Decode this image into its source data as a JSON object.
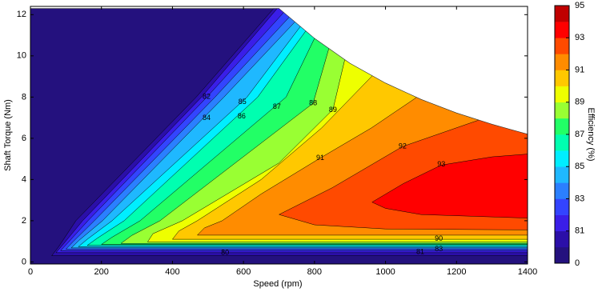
{
  "chart_data": {
    "type": "contour",
    "xlabel": "Speed  (rpm)",
    "ylabel": "Shaft Torque  (Nm)",
    "xlim": [
      0,
      1400
    ],
    "ylim": [
      -0.1,
      12.4
    ],
    "xticks": [
      0,
      200,
      400,
      600,
      800,
      1000,
      1200,
      1400
    ],
    "yticks": [
      0,
      2,
      4,
      6,
      8,
      10,
      12
    ],
    "torque_limit": {
      "x": [
        0,
        700,
        800,
        900,
        1000,
        1100,
        1200,
        1300,
        1400
      ],
      "y": [
        12.3,
        12.3,
        10.85,
        9.64,
        8.68,
        7.89,
        7.23,
        6.68,
        6.2
      ]
    },
    "colorbar": {
      "label": "Efficiency (%)",
      "levels": [
        0,
        80,
        81,
        82,
        83,
        84,
        85,
        86,
        87,
        88,
        89,
        90,
        91,
        92,
        93,
        94,
        95
      ],
      "colors": [
        "#24117e",
        "#2b0fa8",
        "#3a1ee8",
        "#3344ff",
        "#2b7fff",
        "#1fb8ff",
        "#00eeff",
        "#00ffb0",
        "#22ff66",
        "#99ff33",
        "#eeff00",
        "#ffc800",
        "#ff8c00",
        "#ff4a00",
        "#ff0000",
        "#c00000"
      ],
      "ticks": [
        0,
        81,
        83,
        85,
        87,
        89,
        91,
        93,
        95
      ]
    },
    "contours": [
      {
        "level": 80,
        "points": [
          [
            60,
            0.3
          ],
          [
            80,
            0.75
          ],
          [
            128,
            2
          ],
          [
            467,
            8
          ],
          [
            690,
            12.4
          ],
          [
            700,
            14
          ],
          [
            1450,
            14
          ],
          [
            1450,
            0.3
          ]
        ]
      },
      {
        "level": 81,
        "points": [
          [
            72,
            0.45
          ],
          [
            92,
            0.85
          ],
          [
            147,
            2
          ],
          [
            482,
            8
          ],
          [
            700,
            12.4
          ],
          [
            720,
            14
          ],
          [
            1450,
            14
          ],
          [
            1450,
            0.45
          ]
        ]
      },
      {
        "level": 82,
        "points": [
          [
            85,
            0.55
          ],
          [
            105,
            0.92
          ],
          [
            162,
            2
          ],
          [
            497,
            8
          ],
          [
            715,
            12.14
          ],
          [
            740,
            14
          ],
          [
            1450,
            14
          ],
          [
            1450,
            0.55
          ]
        ]
      },
      {
        "level": 83,
        "points": [
          [
            100,
            0.62
          ],
          [
            120,
            0.98
          ],
          [
            180,
            2
          ],
          [
            520,
            8
          ],
          [
            730,
            11.9
          ],
          [
            760,
            14
          ],
          [
            1450,
            14
          ],
          [
            1450,
            0.62
          ]
        ]
      },
      {
        "level": 84,
        "points": [
          [
            115,
            0.68
          ],
          [
            137,
            1.05
          ],
          [
            203,
            2
          ],
          [
            545,
            8
          ],
          [
            745,
            11.65
          ],
          [
            780,
            14
          ],
          [
            1450,
            14
          ],
          [
            1450,
            0.68
          ]
        ]
      },
      {
        "level": 85,
        "points": [
          [
            135,
            0.74
          ],
          [
            160,
            1.1
          ],
          [
            230,
            2
          ],
          [
            610,
            8
          ],
          [
            760,
            11.42
          ],
          [
            800,
            14
          ],
          [
            1450,
            14
          ],
          [
            1450,
            0.74
          ]
        ]
      },
      {
        "level": 86,
        "points": [
          [
            160,
            0.8
          ],
          [
            188,
            1.15
          ],
          [
            264,
            2
          ],
          [
            640,
            8
          ],
          [
            775,
            11.2
          ],
          [
            820,
            14
          ],
          [
            1450,
            14
          ],
          [
            1450,
            0.8
          ]
        ]
      },
      {
        "level": 87,
        "points": [
          [
            200,
            0.85
          ],
          [
            230,
            1.2
          ],
          [
            309,
            2
          ],
          [
            720,
            8
          ],
          [
            800,
            10.85
          ],
          [
            850,
            14
          ],
          [
            1450,
            14
          ],
          [
            1450,
            0.85
          ]
        ]
      },
      {
        "level": 88,
        "points": [
          [
            255,
            0.9
          ],
          [
            285,
            1.28
          ],
          [
            365,
            2
          ],
          [
            796,
            7.7
          ],
          [
            840,
            10.33
          ],
          [
            880,
            14
          ],
          [
            1450,
            14
          ],
          [
            1450,
            0.9
          ]
        ]
      },
      {
        "level": 89,
        "points": [
          [
            330,
            0.97
          ],
          [
            345,
            1.37
          ],
          [
            428,
            2
          ],
          [
            700,
            4.8
          ],
          [
            852,
            7.4
          ],
          [
            885,
            9.8
          ],
          [
            925,
            14
          ],
          [
            1450,
            14
          ],
          [
            1450,
            0.97
          ]
        ]
      },
      {
        "level": 90,
        "points": [
          [
            400,
            1.1
          ],
          [
            418,
            1.5
          ],
          [
            470,
            2
          ],
          [
            650,
            4
          ],
          [
            820,
            6.5
          ],
          [
            962,
            9.02
          ],
          [
            1000,
            14
          ],
          [
            1450,
            14
          ],
          [
            1450,
            1.1
          ]
        ]
      },
      {
        "level": 91,
        "points": [
          [
            470,
            1.3
          ],
          [
            490,
            1.65
          ],
          [
            540,
            2
          ],
          [
            650,
            3.3
          ],
          [
            816,
            5.04
          ],
          [
            960,
            6.5
          ],
          [
            1087,
            7.98
          ],
          [
            1120,
            14
          ],
          [
            1450,
            14
          ],
          [
            1450,
            1.3
          ]
        ]
      },
      {
        "level": 92,
        "points": [
          [
            700,
            2.3
          ],
          [
            850,
            3.6
          ],
          [
            1048,
            5.6
          ],
          [
            1262,
            6.88
          ],
          [
            1300,
            14
          ],
          [
            1450,
            14
          ],
          [
            1450,
            1.55
          ],
          [
            1000,
            1.6
          ],
          [
            800,
            1.8
          ]
        ]
      },
      {
        "level": 93,
        "points": [
          [
            962,
            2.9
          ],
          [
            1050,
            3.8
          ],
          [
            1157,
            4.7
          ],
          [
            1300,
            5.1
          ],
          [
            1450,
            5.3
          ],
          [
            1450,
            2.1
          ],
          [
            1100,
            2.3
          ],
          [
            1000,
            2.6
          ]
        ]
      }
    ],
    "contour_labels": [
      {
        "value": 82,
        "x": 496,
        "y": 8.0
      },
      {
        "value": 84,
        "x": 496,
        "y": 6.98
      },
      {
        "value": 85,
        "x": 597,
        "y": 7.75
      },
      {
        "value": 86,
        "x": 595,
        "y": 7.05
      },
      {
        "value": 87,
        "x": 694,
        "y": 7.52
      },
      {
        "value": 88,
        "x": 796,
        "y": 7.7
      },
      {
        "value": 89,
        "x": 852,
        "y": 7.36
      },
      {
        "value": 91,
        "x": 816,
        "y": 5.04
      },
      {
        "value": 92,
        "x": 1048,
        "y": 5.6
      },
      {
        "value": 93,
        "x": 1157,
        "y": 4.73
      },
      {
        "value": 90,
        "x": 1150,
        "y": 1.12
      },
      {
        "value": 83,
        "x": 1150,
        "y": 0.62
      },
      {
        "value": 81,
        "x": 1098,
        "y": 0.47
      },
      {
        "value": 80,
        "x": 548,
        "y": 0.43
      }
    ]
  }
}
